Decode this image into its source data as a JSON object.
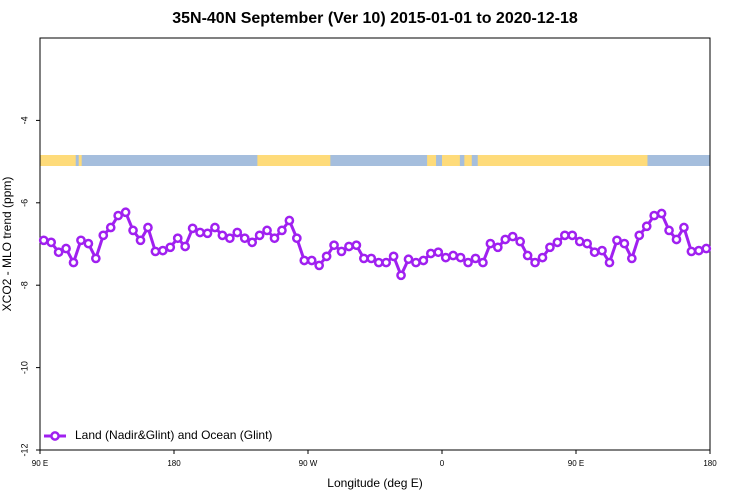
{
  "chart_data": {
    "type": "line",
    "title": "35N-40N September (Ver 10)   2015-01-01 to 2020-12-18",
    "x_label": "Longitude (deg E)",
    "y_label": "XCO2 - MLO trend (ppm)",
    "xlim": [
      90,
      540
    ],
    "xticks": [
      {
        "value": 90,
        "label": "90 E"
      },
      {
        "value": 180,
        "label": "180"
      },
      {
        "value": 270,
        "label": "90 W"
      },
      {
        "value": 360,
        "label": "0"
      },
      {
        "value": 450,
        "label": "90 E"
      },
      {
        "value": 540,
        "label": "180"
      }
    ],
    "ylim": [
      -12,
      -2
    ],
    "yticks": [
      -12,
      -10,
      -8,
      -6,
      -4
    ],
    "legend": "bottom-left",
    "ocean_color": "#a5bedd",
    "land_color": "#fedb7a",
    "land_ranges": [
      [
        90,
        114
      ],
      [
        116,
        118
      ],
      [
        236,
        285
      ],
      [
        350,
        356
      ],
      [
        360,
        372
      ],
      [
        375,
        380
      ],
      [
        384,
        498
      ]
    ],
    "x": [
      92.5,
      97.5,
      102.5,
      107.5,
      112.5,
      117.5,
      122.5,
      127.5,
      132.5,
      137.5,
      142.5,
      147.5,
      152.5,
      157.5,
      162.5,
      167.5,
      172.5,
      177.5,
      182.5,
      187.5,
      192.5,
      197.5,
      202.5,
      207.5,
      212.5,
      217.5,
      222.5,
      227.5,
      232.5,
      237.5,
      242.5,
      247.5,
      252.5,
      257.5,
      262.5,
      267.5,
      272.5,
      277.5,
      282.5,
      287.5,
      292.5,
      297.5,
      302.5,
      307.5,
      312.5,
      317.5,
      322.5,
      327.5,
      332.5,
      337.5,
      342.5,
      347.5,
      352.5,
      357.5,
      362.5,
      367.5,
      372.5,
      377.5,
      382.5,
      387.5,
      392.5,
      397.5,
      402.5,
      407.5,
      412.5,
      417.5,
      422.5,
      427.5,
      432.5,
      437.5,
      442.5,
      447.5,
      452.5,
      457.5,
      462.5,
      467.5,
      472.5,
      477.5,
      482.5,
      487.5,
      492.5,
      497.5,
      502.5,
      507.5,
      512.5,
      517.5,
      522.5,
      527.5,
      532.5,
      537.5
    ],
    "series": [
      {
        "name": "Land (Nadir&Glint) and Ocean (Glint)",
        "color": "#a020f0",
        "values": [
          -6.91,
          -6.96,
          -7.2,
          -7.11,
          -7.45,
          -6.91,
          -6.99,
          -7.35,
          -6.79,
          -6.6,
          -6.31,
          -6.23,
          -6.67,
          -6.91,
          -6.6,
          -7.18,
          -7.16,
          -7.08,
          -6.86,
          -7.06,
          -6.62,
          -6.72,
          -6.74,
          -6.6,
          -6.79,
          -6.86,
          -6.72,
          -6.86,
          -6.96,
          -6.79,
          -6.67,
          -6.86,
          -6.67,
          -6.43,
          -6.86,
          -7.4,
          -7.4,
          -7.52,
          -7.3,
          -7.03,
          -7.18,
          -7.06,
          -7.03,
          -7.35,
          -7.35,
          -7.45,
          -7.45,
          -7.3,
          -7.76,
          -7.37,
          -7.45,
          -7.4,
          -7.23,
          -7.2,
          -7.33,
          -7.28,
          -7.33,
          -7.45,
          -7.35,
          -7.45,
          -6.99,
          -7.08,
          -6.89,
          -6.82,
          -6.94,
          -7.28,
          -7.45,
          -7.33,
          -7.08,
          -6.96,
          -6.79,
          -6.79,
          -6.94,
          -6.99,
          -7.2,
          -7.16,
          -7.45,
          -6.91,
          -6.99,
          -7.35,
          -6.79,
          -6.57,
          -6.31,
          -6.26,
          -6.67,
          -6.89,
          -6.6,
          -7.18,
          -7.16,
          -7.11
        ]
      }
    ]
  }
}
